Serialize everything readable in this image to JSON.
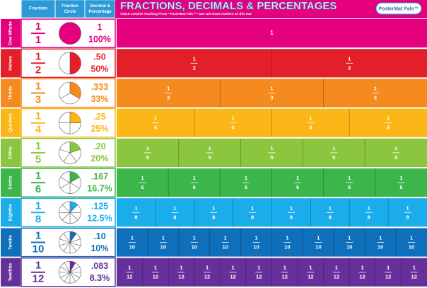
{
  "header": {
    "columns": [
      "Fraction",
      "Fraction Circle",
      "Decimal & Percentage"
    ],
    "title": "FRACTIONS, DECIMALS & PERCENTAGES",
    "subtitle": "©2016 Creative Teaching Press • PosterMat Pals™ • Use wet-erase markers on this mat",
    "logo": "PosterMat Pals™"
  },
  "rows": [
    {
      "name": "One Whole",
      "numerator": 1,
      "denominator": 1,
      "decimal": "1",
      "percent": "100%",
      "color": "#e5007e"
    },
    {
      "name": "Halves",
      "numerator": 1,
      "denominator": 2,
      "decimal": ".50",
      "percent": "50%",
      "color": "#e3202a"
    },
    {
      "name": "Thirds",
      "numerator": 1,
      "denominator": 3,
      "decimal": ".333",
      "percent": "33%",
      "color": "#f58a1f"
    },
    {
      "name": "Quarters",
      "numerator": 1,
      "denominator": 4,
      "decimal": ".25",
      "percent": "25%",
      "color": "#fbb718"
    },
    {
      "name": "Fifths",
      "numerator": 1,
      "denominator": 5,
      "decimal": ".20",
      "percent": "20%",
      "color": "#8cc63f"
    },
    {
      "name": "Sixths",
      "numerator": 1,
      "denominator": 6,
      "decimal": ".167",
      "percent": "16.7%",
      "color": "#3cb54a"
    },
    {
      "name": "Eighths",
      "numerator": 1,
      "denominator": 8,
      "decimal": ".125",
      "percent": "12.5%",
      "color": "#1badeb"
    },
    {
      "name": "Tenths",
      "numerator": 1,
      "denominator": 10,
      "decimal": ".10",
      "percent": "10%",
      "color": "#0f6fbb"
    },
    {
      "name": "Twelfths",
      "numerator": 1,
      "denominator": 12,
      "decimal": ".083",
      "percent": "8.3%",
      "color": "#66309a"
    }
  ]
}
